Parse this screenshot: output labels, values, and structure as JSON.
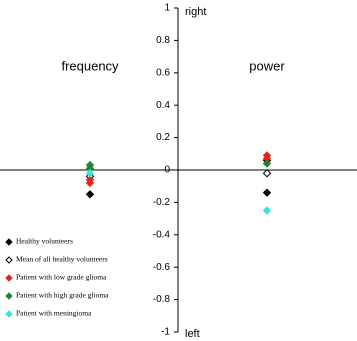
{
  "chart_data": {
    "type": "scatter",
    "categories": [
      "frequency",
      "power"
    ],
    "annotations": [
      "right",
      "left"
    ],
    "ylim": [
      -1,
      1
    ],
    "yticks": [
      1,
      0.8,
      0.6,
      0.4,
      0.2,
      0,
      -0.2,
      -0.4,
      -0.6,
      -0.8,
      -1
    ],
    "series": [
      {
        "name": "Healthy volunteers",
        "color": "#000000",
        "filled": true,
        "x": [
          "frequency",
          "power",
          "power"
        ],
        "values": [
          -0.15,
          -0.14,
          0.06
        ]
      },
      {
        "name": "Mean of all healthy volunteers",
        "color": "#000000",
        "filled": false,
        "x": [
          "frequency",
          "power"
        ],
        "values": [
          -0.04,
          -0.02
        ]
      },
      {
        "name": "Patient with low grade glioma",
        "color": "#e8211d",
        "filled": true,
        "x": [
          "frequency",
          "frequency",
          "power",
          "power"
        ],
        "values": [
          -0.08,
          -0.06,
          0.09,
          0.07
        ]
      },
      {
        "name": "Patient with high grade glioma",
        "color": "#1b8a2e",
        "filled": true,
        "x": [
          "frequency",
          "frequency",
          "power"
        ],
        "values": [
          0.03,
          0.01,
          0.04
        ]
      },
      {
        "name": "Patient with meningioma",
        "color": "#3fe0e6",
        "filled": true,
        "x": [
          "frequency",
          "power"
        ],
        "values": [
          -0.02,
          -0.25
        ]
      }
    ]
  }
}
